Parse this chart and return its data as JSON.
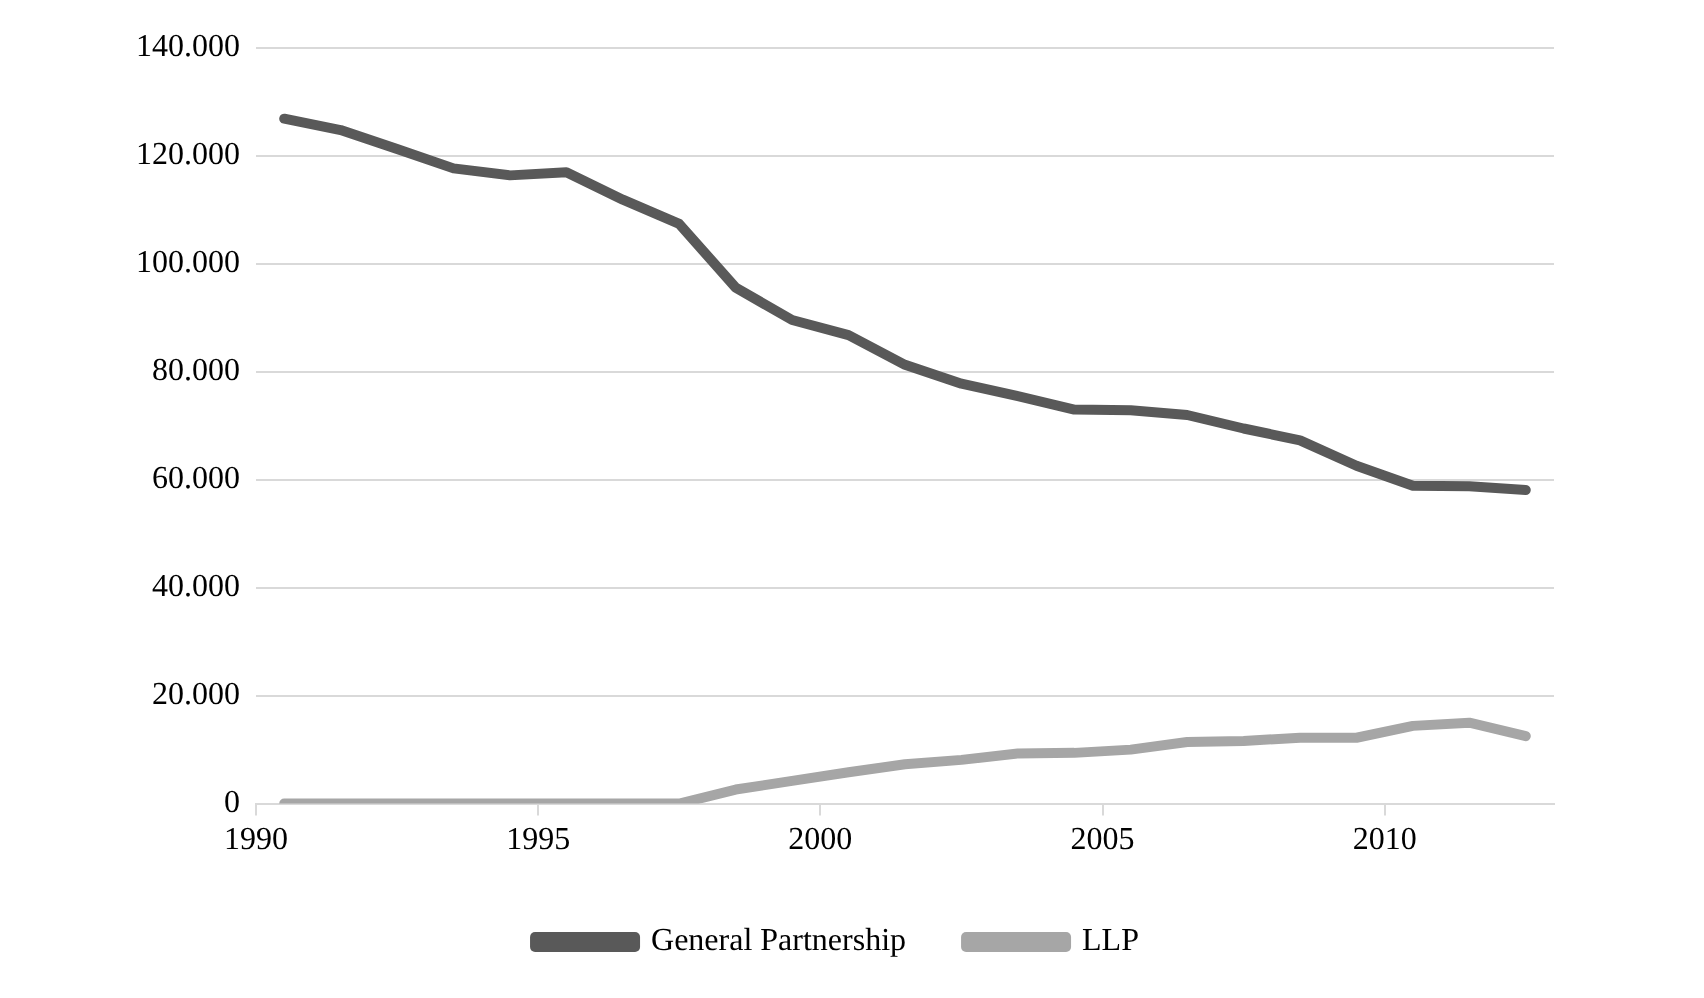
{
  "chart_data": {
    "type": "line",
    "x": [
      1990.5,
      1991.5,
      1992.5,
      1993.5,
      1994.5,
      1995.5,
      1996.5,
      1997.5,
      1998.5,
      1999.5,
      2000.5,
      2001.5,
      2002.5,
      2003.5,
      2004.5,
      2005.5,
      2006.5,
      2007.5,
      2008.5,
      2009.5,
      2010.5,
      2011.5,
      2012.5
    ],
    "series": [
      {
        "name": "General Partnership",
        "color": "#595959",
        "values": [
          126900,
          124800,
          121300,
          117700,
          116400,
          117000,
          111900,
          107400,
          95600,
          89600,
          86800,
          81300,
          77800,
          75500,
          73000,
          72900,
          72000,
          69500,
          67300,
          62600,
          58900,
          58800,
          58100
        ]
      },
      {
        "name": "LLP",
        "color": "#a6a6a6",
        "values": [
          0,
          0,
          0,
          0,
          0,
          0,
          0,
          0,
          2600,
          4200,
          5800,
          7300,
          8100,
          9300,
          9400,
          10000,
          11400,
          11600,
          12200,
          12200,
          14400,
          15000,
          12500
        ]
      }
    ],
    "xlim": [
      1990,
      2013
    ],
    "xticks": [
      1990,
      1995,
      2000,
      2005,
      2010
    ],
    "ylim": [
      0,
      140000
    ],
    "yticks": [
      {
        "value": 0,
        "label": "0"
      },
      {
        "value": 20000,
        "label": "20.000"
      },
      {
        "value": 40000,
        "label": "40.000"
      },
      {
        "value": 60000,
        "label": "60.000"
      },
      {
        "value": 80000,
        "label": "80.000"
      },
      {
        "value": 100000,
        "label": "100.000"
      },
      {
        "value": 120000,
        "label": "120.000"
      },
      {
        "value": 140000,
        "label": "140.000"
      }
    ],
    "grid": "y",
    "legend": "bottom",
    "marker": "none",
    "line_style": "solid"
  }
}
